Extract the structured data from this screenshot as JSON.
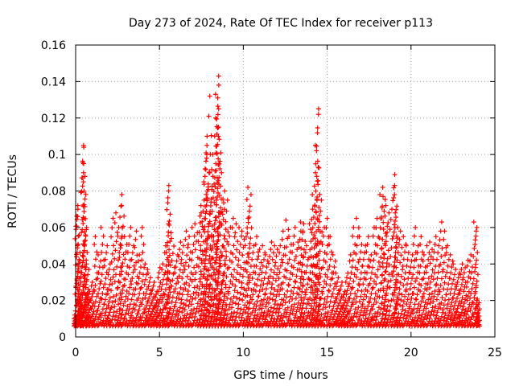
{
  "chart_data": {
    "type": "scatter",
    "title": "Day 273 of 2024, Rate Of TEC Index for receiver p113",
    "xlabel": "GPS time / hours",
    "ylabel": "ROTI / TECUs",
    "xlim": [
      0,
      25
    ],
    "ylim": [
      0,
      0.16
    ],
    "xticks": [
      0,
      5,
      10,
      15,
      20,
      25
    ],
    "yticks": [
      0,
      0.02,
      0.04,
      0.06,
      0.08,
      0.1,
      0.12,
      0.14,
      0.16
    ],
    "xtick_labels": [
      "0",
      "5",
      "10",
      "15",
      "20",
      "25"
    ],
    "ytick_labels": [
      "0",
      "0.02",
      "0.04",
      "0.06",
      "0.08",
      "0.1",
      "0.12",
      "0.14",
      "0.16"
    ],
    "grid": true,
    "marker": "+",
    "series_color": "#ff0000",
    "series": [
      {
        "name": "ROTI",
        "points": [
          [
            0.0,
            0.012
          ],
          [
            0.05,
            0.07
          ],
          [
            0.1,
            0.072
          ],
          [
            0.15,
            0.066
          ],
          [
            0.2,
            0.05
          ],
          [
            0.25,
            0.03
          ],
          [
            0.3,
            0.02
          ],
          [
            0.4,
            0.104
          ],
          [
            0.45,
            0.095
          ],
          [
            0.5,
            0.105
          ],
          [
            0.5,
            0.09
          ],
          [
            0.55,
            0.085
          ],
          [
            0.6,
            0.06
          ],
          [
            0.7,
            0.04
          ],
          [
            0.8,
            0.025
          ],
          [
            1.0,
            0.03
          ],
          [
            1.2,
            0.055
          ],
          [
            1.4,
            0.045
          ],
          [
            1.6,
            0.06
          ],
          [
            1.8,
            0.05
          ],
          [
            2.0,
            0.04
          ],
          [
            2.2,
            0.065
          ],
          [
            2.4,
            0.068
          ],
          [
            2.6,
            0.06
          ],
          [
            2.7,
            0.078
          ],
          [
            2.8,
            0.072
          ],
          [
            3.0,
            0.055
          ],
          [
            3.2,
            0.06
          ],
          [
            3.4,
            0.05
          ],
          [
            3.6,
            0.058
          ],
          [
            3.8,
            0.045
          ],
          [
            4.0,
            0.06
          ],
          [
            4.2,
            0.04
          ],
          [
            4.4,
            0.035
          ],
          [
            4.6,
            0.03
          ],
          [
            4.8,
            0.025
          ],
          [
            5.0,
            0.038
          ],
          [
            5.2,
            0.04
          ],
          [
            5.4,
            0.05
          ],
          [
            5.5,
            0.083
          ],
          [
            5.55,
            0.08
          ],
          [
            5.6,
            0.062
          ],
          [
            5.8,
            0.054
          ],
          [
            6.0,
            0.045
          ],
          [
            6.2,
            0.052
          ],
          [
            6.4,
            0.05
          ],
          [
            6.6,
            0.058
          ],
          [
            6.8,
            0.055
          ],
          [
            7.0,
            0.06
          ],
          [
            7.2,
            0.062
          ],
          [
            7.4,
            0.068
          ],
          [
            7.5,
            0.072
          ],
          [
            7.6,
            0.075
          ],
          [
            7.7,
            0.085
          ],
          [
            7.75,
            0.11
          ],
          [
            7.8,
            0.105
          ],
          [
            7.85,
            0.1
          ],
          [
            7.9,
            0.098
          ],
          [
            8.0,
            0.132
          ],
          [
            8.05,
            0.09
          ],
          [
            8.1,
            0.088
          ],
          [
            8.2,
            0.1
          ],
          [
            8.3,
            0.095
          ],
          [
            8.35,
            0.12
          ],
          [
            8.4,
            0.133
          ],
          [
            8.45,
            0.138
          ],
          [
            8.5,
            0.143
          ],
          [
            8.5,
            0.125
          ],
          [
            8.55,
            0.115
          ],
          [
            8.6,
            0.11
          ],
          [
            8.7,
            0.09
          ],
          [
            8.8,
            0.08
          ],
          [
            8.9,
            0.07
          ],
          [
            9.0,
            0.075
          ],
          [
            9.2,
            0.06
          ],
          [
            9.4,
            0.065
          ],
          [
            9.6,
            0.062
          ],
          [
            9.8,
            0.06
          ],
          [
            10.0,
            0.058
          ],
          [
            10.2,
            0.065
          ],
          [
            10.3,
            0.082
          ],
          [
            10.4,
            0.078
          ],
          [
            10.6,
            0.05
          ],
          [
            10.8,
            0.055
          ],
          [
            11.0,
            0.048
          ],
          [
            11.2,
            0.05
          ],
          [
            11.4,
            0.045
          ],
          [
            11.6,
            0.052
          ],
          [
            11.8,
            0.05
          ],
          [
            12.0,
            0.048
          ],
          [
            12.2,
            0.05
          ],
          [
            12.4,
            0.058
          ],
          [
            12.6,
            0.064
          ],
          [
            12.8,
            0.055
          ],
          [
            13.0,
            0.06
          ],
          [
            13.2,
            0.052
          ],
          [
            13.4,
            0.058
          ],
          [
            13.5,
            0.063
          ],
          [
            13.6,
            0.062
          ],
          [
            13.8,
            0.05
          ],
          [
            14.0,
            0.062
          ],
          [
            14.1,
            0.07
          ],
          [
            14.2,
            0.078
          ],
          [
            14.3,
            0.09
          ],
          [
            14.35,
            0.105
          ],
          [
            14.4,
            0.125
          ],
          [
            14.45,
            0.122
          ],
          [
            14.5,
            0.093
          ],
          [
            14.6,
            0.075
          ],
          [
            14.8,
            0.06
          ],
          [
            15.0,
            0.065
          ],
          [
            15.2,
            0.055
          ],
          [
            15.4,
            0.045
          ],
          [
            15.6,
            0.035
          ],
          [
            15.8,
            0.03
          ],
          [
            16.0,
            0.025
          ],
          [
            16.2,
            0.035
          ],
          [
            16.4,
            0.045
          ],
          [
            16.6,
            0.06
          ],
          [
            16.8,
            0.065
          ],
          [
            17.0,
            0.055
          ],
          [
            17.2,
            0.05
          ],
          [
            17.4,
            0.055
          ],
          [
            17.6,
            0.045
          ],
          [
            17.8,
            0.06
          ],
          [
            18.0,
            0.065
          ],
          [
            18.2,
            0.078
          ],
          [
            18.3,
            0.077
          ],
          [
            18.4,
            0.082
          ],
          [
            18.5,
            0.072
          ],
          [
            18.6,
            0.068
          ],
          [
            18.8,
            0.07
          ],
          [
            19.0,
            0.089
          ],
          [
            19.05,
            0.083
          ],
          [
            19.1,
            0.078
          ],
          [
            19.2,
            0.06
          ],
          [
            19.4,
            0.058
          ],
          [
            19.6,
            0.055
          ],
          [
            19.8,
            0.05
          ],
          [
            20.0,
            0.045
          ],
          [
            20.2,
            0.06
          ],
          [
            20.4,
            0.05
          ],
          [
            20.6,
            0.055
          ],
          [
            20.8,
            0.045
          ],
          [
            21.0,
            0.05
          ],
          [
            21.2,
            0.052
          ],
          [
            21.4,
            0.055
          ],
          [
            21.6,
            0.05
          ],
          [
            21.8,
            0.063
          ],
          [
            22.0,
            0.058
          ],
          [
            22.2,
            0.05
          ],
          [
            22.4,
            0.045
          ],
          [
            22.6,
            0.04
          ],
          [
            22.8,
            0.035
          ],
          [
            23.0,
            0.04
          ],
          [
            23.2,
            0.038
          ],
          [
            23.4,
            0.042
          ],
          [
            23.6,
            0.045
          ],
          [
            23.8,
            0.063
          ],
          [
            23.9,
            0.06
          ],
          [
            24.0,
            0.02
          ]
        ]
      }
    ]
  }
}
